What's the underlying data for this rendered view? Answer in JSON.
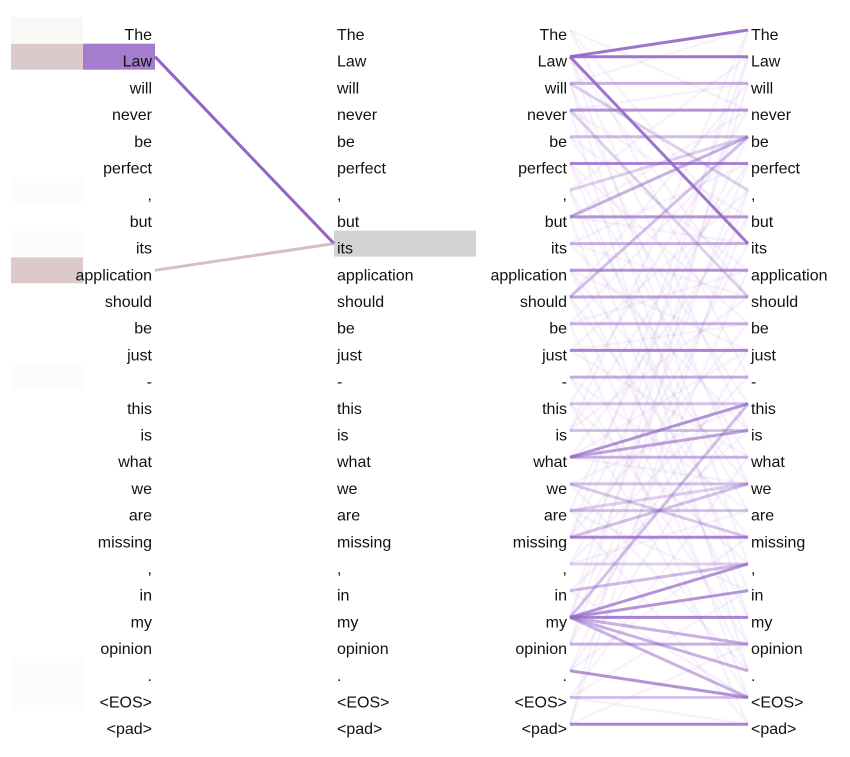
{
  "tokens_left_panel": [
    "The",
    "Law",
    "will",
    "never",
    "be",
    "perfect",
    ",",
    "but",
    "its",
    "application",
    "should",
    "be",
    "just",
    "-",
    "this",
    "is",
    "what",
    "we",
    "are",
    "missing",
    ",",
    "in",
    "my",
    "opinion",
    ".",
    "<EOS>",
    "<pad>"
  ],
  "tokens_right_panel_left": [
    "The",
    "Law",
    "will",
    "never",
    "be",
    "perfect",
    ",",
    "but",
    "its",
    "application",
    "should",
    "be",
    "just",
    "-",
    "this",
    "is",
    "what",
    "we",
    "are",
    "missing",
    ",",
    "in",
    "my",
    "opinion",
    ".",
    "<EOS>",
    "<pad>"
  ],
  "tokens_right_panel_right": [
    "The",
    "Law",
    "will",
    "never",
    "be",
    "perfect",
    ",",
    "but",
    "its",
    "application",
    "should",
    "be",
    "just",
    "-",
    "this",
    "is",
    "what",
    "we",
    "are",
    "missing",
    ",",
    "in",
    "my",
    "opinion",
    ".",
    "<EOS>",
    "<pad>"
  ],
  "selected_query_index": 8,
  "attention_to_selected": [
    {
      "from": 1,
      "weight": 0.85,
      "color": "#8e5cc0"
    },
    {
      "from": 9,
      "weight": 0.55,
      "color": "#bf9e9e"
    }
  ],
  "faint_left_highlights": [
    {
      "index": 0,
      "weight": 0.08,
      "color": "#bf9e9e"
    },
    {
      "index": 1,
      "weight": 0.55,
      "color": "#bf9e9e"
    },
    {
      "index": 6,
      "weight": 0.03,
      "color": "#bf9e9e"
    },
    {
      "index": 8,
      "weight": 0.03,
      "color": "#bf9e9e"
    },
    {
      "index": 9,
      "weight": 0.55,
      "color": "#bf9e9e"
    },
    {
      "index": 13,
      "weight": 0.03,
      "color": "#bf9e9e"
    },
    {
      "index": 24,
      "weight": 0.03,
      "color": "#bf9e9e"
    },
    {
      "index": 25,
      "weight": 0.03,
      "color": "#bf9e9e"
    }
  ],
  "strong_edges": [
    [
      1,
      0,
      0.9
    ],
    [
      1,
      1,
      0.9
    ],
    [
      1,
      8,
      0.9
    ],
    [
      2,
      2,
      0.5
    ],
    [
      3,
      3,
      0.7
    ],
    [
      4,
      4,
      0.4
    ],
    [
      5,
      5,
      0.8
    ],
    [
      7,
      7,
      0.7
    ],
    [
      7,
      4,
      0.5
    ],
    [
      8,
      8,
      0.5
    ],
    [
      9,
      9,
      0.7
    ],
    [
      10,
      10,
      0.6
    ],
    [
      10,
      4,
      0.4
    ],
    [
      11,
      11,
      0.5
    ],
    [
      12,
      12,
      0.8
    ],
    [
      13,
      13,
      0.5
    ],
    [
      14,
      14,
      0.4
    ],
    [
      15,
      15,
      0.4
    ],
    [
      16,
      16,
      0.5
    ],
    [
      16,
      14,
      0.7
    ],
    [
      16,
      15,
      0.6
    ],
    [
      17,
      17,
      0.4
    ],
    [
      18,
      18,
      0.4
    ],
    [
      19,
      19,
      0.8
    ],
    [
      19,
      17,
      0.4
    ],
    [
      20,
      20,
      0.3
    ],
    [
      22,
      20,
      0.7
    ],
    [
      22,
      21,
      0.7
    ],
    [
      22,
      22,
      0.8
    ],
    [
      22,
      23,
      0.5
    ],
    [
      22,
      24,
      0.5
    ],
    [
      22,
      25,
      0.5
    ],
    [
      22,
      14,
      0.4
    ],
    [
      23,
      23,
      0.5
    ],
    [
      24,
      25,
      0.7
    ],
    [
      25,
      25,
      0.4
    ],
    [
      26,
      26,
      0.8
    ],
    [
      2,
      6,
      0.3
    ],
    [
      3,
      10,
      0.3
    ],
    [
      6,
      4,
      0.3
    ],
    [
      17,
      19,
      0.3
    ],
    [
      18,
      17,
      0.3
    ],
    [
      21,
      20,
      0.4
    ]
  ],
  "colors": {
    "attention": "#9466c6",
    "highlight": "#bf9e9e",
    "selected": "#d3d3d3",
    "text": "#111111"
  }
}
